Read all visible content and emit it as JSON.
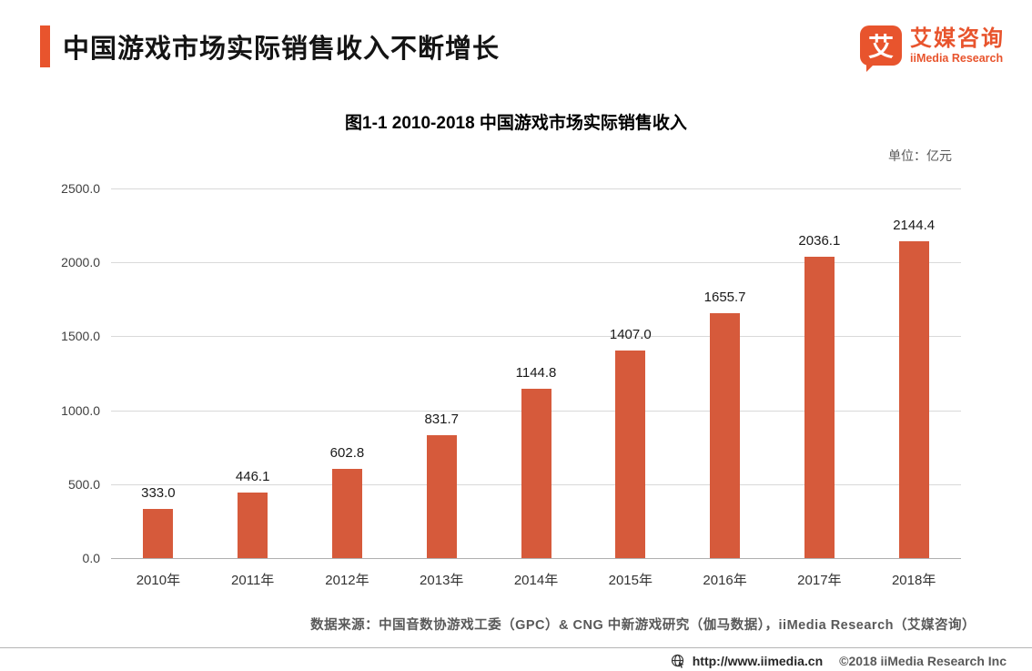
{
  "header": {
    "title": "中国游戏市场实际销售收入不断增长",
    "logo": {
      "icon_glyph": "艾",
      "brand_cn": "艾媒咨询",
      "brand_en": "iiMedia Research"
    },
    "accent_color": "#E8542D"
  },
  "chart": {
    "title": "图1-1 2010-2018 中国游戏市场实际销售收入",
    "unit_label": "单位：亿元",
    "source": "数据来源：中国音数协游戏工委（GPC）& CNG 中新游戏研究（伽马数据），iiMedia Research（艾媒咨询）"
  },
  "chart_data": {
    "type": "bar",
    "categories": [
      "2010年",
      "2011年",
      "2012年",
      "2013年",
      "2014年",
      "2015年",
      "2016年",
      "2017年",
      "2018年"
    ],
    "values": [
      333.0,
      446.1,
      602.8,
      831.7,
      1144.8,
      1407.0,
      1655.7,
      2036.1,
      2144.4
    ],
    "title": "图1-1 2010-2018 中国游戏市场实际销售收入",
    "xlabel": "",
    "ylabel": "单位：亿元",
    "ylim": [
      0,
      2500
    ],
    "ytick_step": 500,
    "ytick_labels": [
      "2500.0",
      "2000.0",
      "1500.0",
      "1000.0",
      "500.0",
      "0.0"
    ],
    "bar_color": "#D65A3B",
    "grid": true,
    "legend_position": "none"
  },
  "footer": {
    "url": "http://www.iimedia.cn",
    "copyright": "©2018  iiMedia Research Inc"
  }
}
